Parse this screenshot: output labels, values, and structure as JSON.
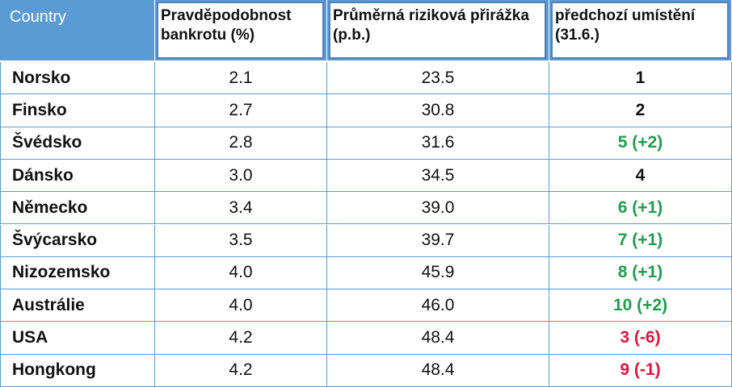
{
  "table": {
    "header": [
      "Country",
      "Pravděpodobnost bankrotu (%)",
      "Průměrná riziková přirážka (p.b.)",
      "předchozí umístění (31.6.)"
    ],
    "rows": [
      {
        "cells": [
          "Norsko",
          "2.1",
          "23.5",
          "1"
        ],
        "color": "#111111"
      },
      {
        "cells": [
          "Finsko",
          "2.7",
          "30.8",
          "2"
        ],
        "color": "#111111"
      },
      {
        "cells": [
          "Švédsko",
          "2.8",
          "31.6",
          "5 (+2)"
        ],
        "color": "#1e9e4e"
      },
      {
        "cells": [
          "Dánsko",
          "3.0",
          "34.5",
          "4"
        ],
        "color": "#111111"
      },
      {
        "cells": [
          "Německo",
          "3.4",
          "39.0",
          "6 (+1)"
        ],
        "color": "#1e9e4e"
      },
      {
        "cells": [
          "Švýcarsko",
          "3.5",
          "39.7",
          "7 (+1)"
        ],
        "color": "#1e9e4e"
      },
      {
        "cells": [
          "Nizozemsko",
          "4.0",
          "45.9",
          "8 (+1)"
        ],
        "color": "#1e9e4e"
      },
      {
        "cells": [
          "Austrálie",
          "4.0",
          "46.0",
          "10 (+2)"
        ],
        "color": "#1e9e4e"
      },
      {
        "cells": [
          "USA",
          "4.2",
          "48.4",
          "3 (-6)"
        ],
        "color": "#e0143c"
      },
      {
        "cells": [
          "Hongkong",
          "4.2",
          "48.4",
          "9 (-1)"
        ],
        "color": "#e0143c"
      }
    ]
  }
}
